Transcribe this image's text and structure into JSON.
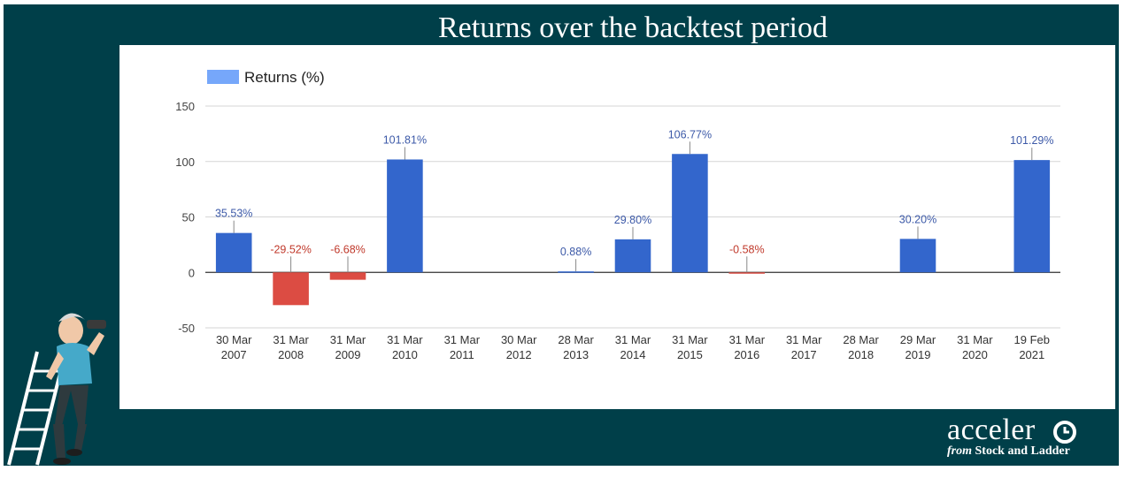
{
  "slide": {
    "title": "Returns over the backtest period",
    "brand_name": "acceler",
    "brand_from": "from",
    "brand_sub": "Stock and Ladder",
    "colors": {
      "background": "#003f49",
      "positive_bar": "#3366cc",
      "negative_bar": "#dc4c43",
      "positive_label": "#3d5aa8",
      "negative_label": "#c0392b"
    }
  },
  "chart_data": {
    "type": "bar",
    "legend": "Returns (%)",
    "legend_position": "top-left",
    "grid": true,
    "ylim": [
      -50,
      150
    ],
    "yticks": [
      150,
      100,
      50,
      0,
      -50
    ],
    "categories": [
      [
        "30 Mar",
        "2007"
      ],
      [
        "31 Mar",
        "2008"
      ],
      [
        "31 Mar",
        "2009"
      ],
      [
        "31 Mar",
        "2010"
      ],
      [
        "31 Mar",
        "2011"
      ],
      [
        "30 Mar",
        "2012"
      ],
      [
        "28 Mar",
        "2013"
      ],
      [
        "31 Mar",
        "2014"
      ],
      [
        "31 Mar",
        "2015"
      ],
      [
        "31 Mar",
        "2016"
      ],
      [
        "31 Mar",
        "2017"
      ],
      [
        "28 Mar",
        "2018"
      ],
      [
        "29 Mar",
        "2019"
      ],
      [
        "31 Mar",
        "2020"
      ],
      [
        "19 Feb",
        "2021"
      ]
    ],
    "series": [
      {
        "name": "Returns (%)",
        "values": [
          35.53,
          -29.52,
          -6.68,
          101.81,
          null,
          null,
          0.88,
          29.8,
          106.77,
          -0.58,
          null,
          null,
          30.2,
          null,
          101.29
        ],
        "labels": [
          "35.53%",
          "-29.52%",
          "-6.68%",
          "101.81%",
          "",
          "",
          "0.88%",
          "29.80%",
          "106.77%",
          "-0.58%",
          "",
          "",
          "30.20%",
          "",
          "101.29%"
        ]
      }
    ]
  }
}
